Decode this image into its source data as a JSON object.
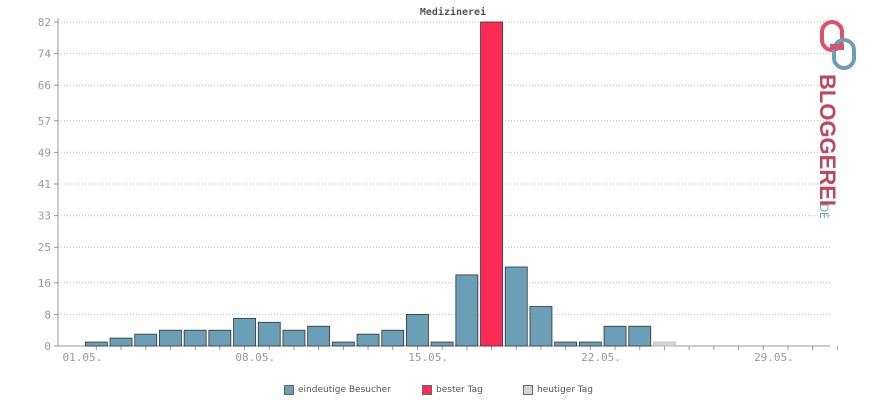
{
  "chart_data": {
    "type": "bar",
    "title": "Medizinerei",
    "xlabel": "",
    "ylabel": "",
    "yticks": [
      0,
      8,
      16,
      25,
      33,
      41,
      49,
      57,
      66,
      74,
      82
    ],
    "ylim": [
      0,
      82
    ],
    "xtick_labels": [
      "01.05.",
      "08.05.",
      "15.05.",
      "22.05.",
      "29.05."
    ],
    "categories": [
      "01.05.",
      "02.05.",
      "03.05.",
      "04.05.",
      "05.05.",
      "06.05.",
      "07.05.",
      "08.05.",
      "09.05.",
      "10.05.",
      "11.05.",
      "12.05.",
      "13.05.",
      "14.05.",
      "15.05.",
      "16.05.",
      "17.05.",
      "18.05.",
      "19.05.",
      "20.05.",
      "21.05.",
      "22.05.",
      "23.05.",
      "24.05.",
      "25.05.",
      "26.05.",
      "27.05.",
      "28.05.",
      "29.05.",
      "30.05.",
      "31.05."
    ],
    "series": [
      {
        "name": "eindeutige Besucher",
        "color": "#6a9fb5",
        "values": [
          1,
          2,
          3,
          4,
          4,
          4,
          7,
          6,
          4,
          5,
          1,
          3,
          4,
          8,
          1,
          18,
          82,
          20,
          10,
          1,
          1,
          5,
          5,
          1,
          0,
          0,
          0,
          0,
          0,
          0,
          0
        ]
      }
    ],
    "best_day_index": 16,
    "today_index": 23,
    "colors": {
      "bar": "#6a9fb5",
      "best": "#ff2a55",
      "today": "#d3d3d3",
      "grid": "#bbbbbb",
      "axis": "#999999"
    },
    "grid": true,
    "legend_position": "bottom"
  },
  "legend": {
    "visitors": "eindeutige Besucher",
    "best": "bester Tag",
    "today": "heutiger Tag"
  },
  "logo": {
    "text_main": "BLOGGEREI",
    "text_suffix": ".DE"
  }
}
